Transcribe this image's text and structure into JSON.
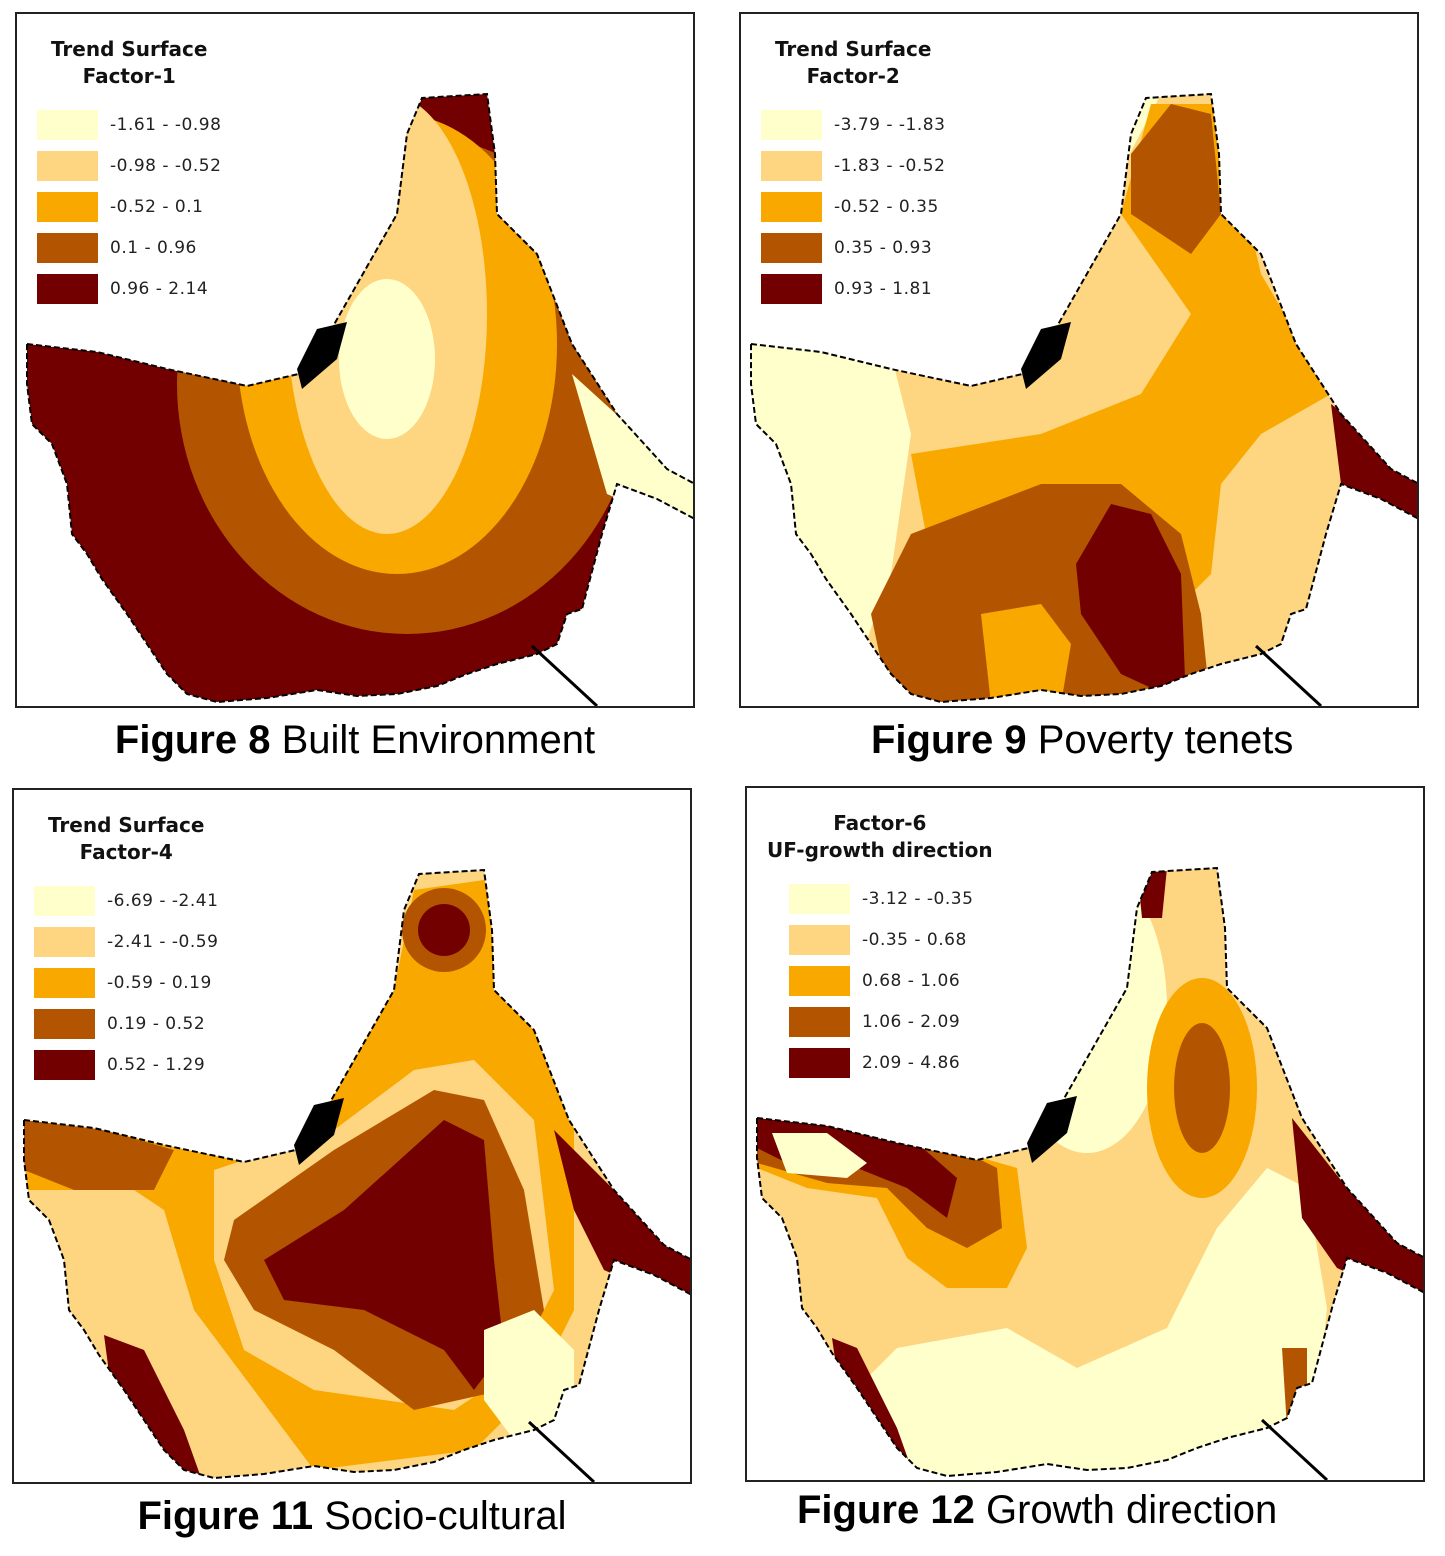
{
  "colors": {
    "c1": "#ffffcc",
    "c2": "#fed580",
    "c3": "#f9a800",
    "c4": "#b35500",
    "c5": "#730000",
    "landmark": "#000000"
  },
  "maps": [
    {
      "title_line1": "Trend Surface",
      "title_line2": "Factor-1",
      "ranges": [
        "-1.61 - -0.98",
        "-0.98 - -0.52",
        "-0.52 - 0.1",
        "0.1 - 0.96",
        "0.96 - 2.14"
      ],
      "figure_num": "Figure 8",
      "figure_text": "Built Environment"
    },
    {
      "title_line1": "Trend Surface",
      "title_line2": "Factor-2",
      "ranges": [
        "-3.79 - -1.83",
        "-1.83 - -0.52",
        "-0.52 - 0.35",
        "0.35 - 0.93",
        "0.93 - 1.81"
      ],
      "figure_num": "Figure 9",
      "figure_text": "Poverty tenets"
    },
    {
      "title_line1": "Trend Surface",
      "title_line2": "Factor-4",
      "ranges": [
        "-6.69 - -2.41",
        "-2.41 - -0.59",
        "-0.59 - 0.19",
        "0.19 - 0.52",
        "0.52 - 1.29"
      ],
      "figure_num": "Figure 11",
      "figure_text": "Socio-cultural"
    },
    {
      "title_line1": "Factor-6",
      "title_line2": "UF-growth direction",
      "ranges": [
        "-3.12 - -0.35",
        "-0.35 - 0.68",
        "0.68 - 1.06",
        "1.06 - 2.09",
        "2.09 - 4.86"
      ],
      "figure_num": "Figure 12",
      "figure_text": "Growth direction"
    }
  ]
}
